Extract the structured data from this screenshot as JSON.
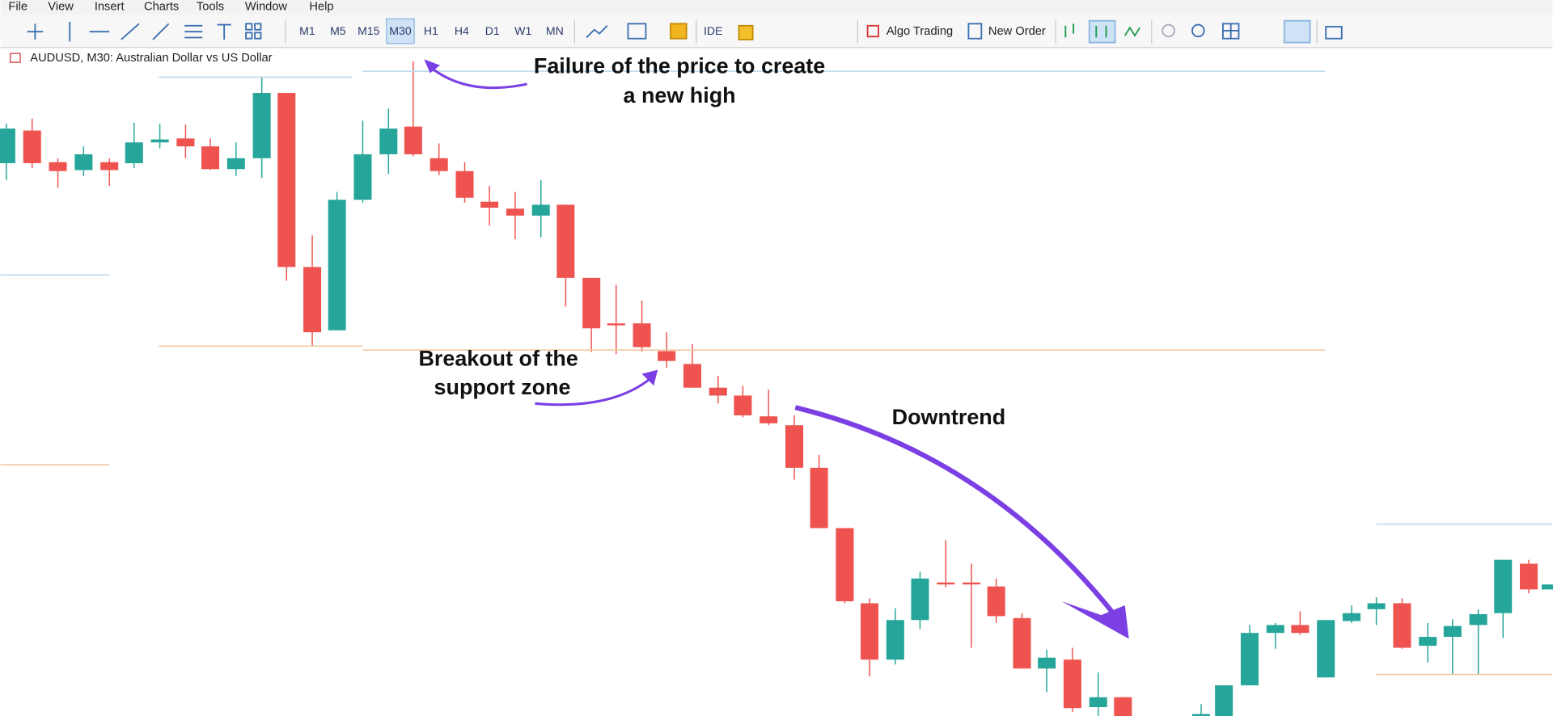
{
  "menu": [
    "File",
    "View",
    "Insert",
    "Charts",
    "Tools",
    "Window",
    "Help"
  ],
  "toolbar": {
    "timeframes": [
      "M1",
      "M5",
      "M15",
      "M30",
      "H1",
      "H4",
      "D1",
      "W1",
      "MN"
    ],
    "ide": "IDE",
    "algo_trading": "Algo Trading",
    "new_order": "New Order"
  },
  "chart": {
    "symbol": "AUDUSD, M30:  Australian Dollar vs US Dollar"
  },
  "annotations": [
    {
      "lines": [
        "Failure of the price to create",
        "a new high"
      ]
    },
    {
      "lines": [
        "Breakout of the",
        "support zone"
      ]
    },
    {
      "lines": [
        "Downtrend"
      ]
    }
  ]
}
